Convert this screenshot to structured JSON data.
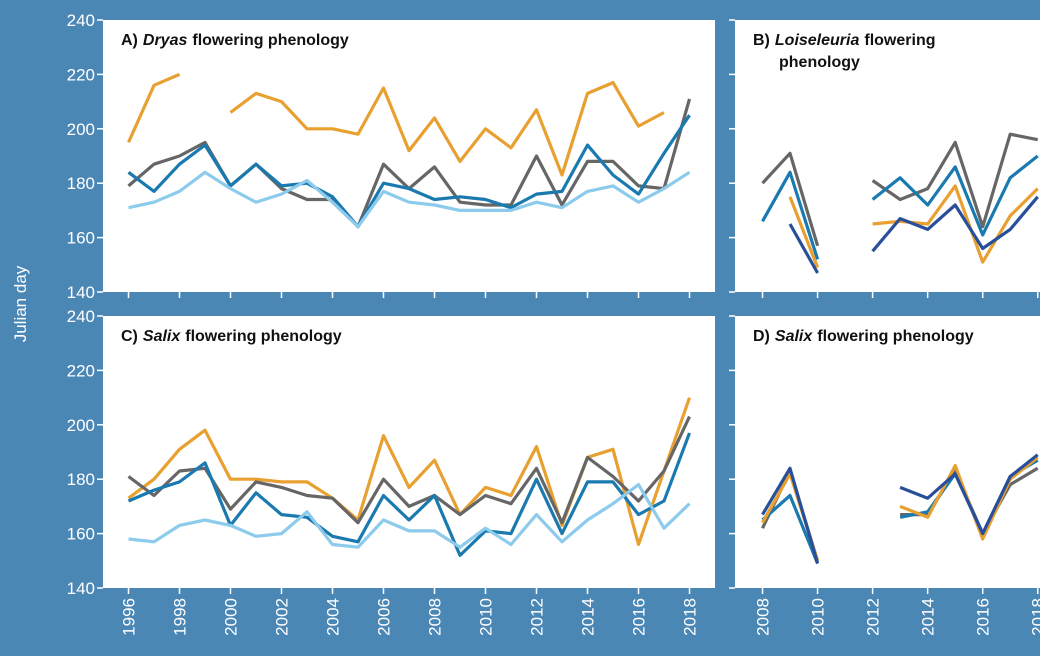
{
  "chart_data": [
    {
      "type": "line",
      "title": [
        [
          {
            "text": "A)"
          },
          {
            "text": "Dryas",
            "italic": true
          },
          {
            "text": "flowering phenology"
          }
        ]
      ],
      "ylabel": "Julian day",
      "x": [
        1996,
        1997,
        1998,
        1999,
        2000,
        2001,
        2002,
        2003,
        2004,
        2005,
        2006,
        2007,
        2008,
        2009,
        2010,
        2011,
        2012,
        2013,
        2014,
        2015,
        2016,
        2017,
        2018
      ],
      "xlim": [
        1995,
        2019
      ],
      "xticks": [
        1996,
        1998,
        2000,
        2002,
        2004,
        2006,
        2008,
        2010,
        2012,
        2014,
        2016,
        2018
      ],
      "xtick_labels": false,
      "ylim": [
        140,
        240
      ],
      "yticks": [
        140,
        160,
        180,
        200,
        220,
        240
      ],
      "ytick_labels": true,
      "series": [
        {
          "color": "#e8a030",
          "values": [
            195,
            216,
            220,
            null,
            206,
            213,
            210,
            200,
            200,
            198,
            215,
            192,
            204,
            188,
            200,
            193,
            207,
            183,
            213,
            217,
            201,
            206,
            null
          ]
        },
        {
          "color": "#666666",
          "values": [
            179,
            187,
            190,
            195,
            179,
            187,
            178,
            174,
            174,
            164,
            187,
            178,
            186,
            173,
            172,
            172,
            190,
            172,
            188,
            188,
            179,
            178,
            211
          ]
        },
        {
          "color": "#1a7ab0",
          "values": [
            184,
            177,
            187,
            194,
            179,
            187,
            179,
            180,
            175,
            164,
            180,
            178,
            174,
            175,
            174,
            171,
            176,
            177,
            194,
            183,
            176,
            191,
            205
          ]
        },
        {
          "color": "#8ccbec",
          "values": [
            171,
            173,
            177,
            184,
            178,
            173,
            176,
            181,
            173,
            164,
            177,
            173,
            172,
            170,
            170,
            170,
            173,
            171,
            177,
            179,
            173,
            178,
            184
          ]
        }
      ]
    },
    {
      "type": "line",
      "title": [
        [
          {
            "text": "B)"
          },
          {
            "text": "Loiseleuria",
            "italic": true
          },
          {
            "text": "flowering"
          }
        ],
        [
          {
            "text": "phenology"
          }
        ]
      ],
      "x": [
        2008,
        2009,
        2010,
        2011,
        2012,
        2013,
        2014,
        2015,
        2016,
        2017,
        2018
      ],
      "xlim": [
        2007,
        2018.3
      ],
      "xticks": [
        2008,
        2010,
        2012,
        2014,
        2016,
        2018
      ],
      "xtick_labels": false,
      "ylim": [
        140,
        240
      ],
      "yticks": [
        140,
        160,
        180,
        200,
        220,
        240
      ],
      "ytick_labels": false,
      "series": [
        {
          "color": "#666666",
          "values": [
            180,
            191,
            157,
            null,
            181,
            174,
            178,
            195,
            164,
            198,
            196
          ]
        },
        {
          "color": "#1a7ab0",
          "values": [
            166,
            184,
            152,
            null,
            174,
            182,
            172,
            186,
            161,
            182,
            190
          ]
        },
        {
          "color": "#e8a030",
          "values": [
            null,
            175,
            149,
            null,
            165,
            166,
            165,
            179,
            151,
            168,
            178
          ]
        },
        {
          "color": "#2a4f9a",
          "values": [
            null,
            165,
            147,
            null,
            155,
            167,
            163,
            172,
            156,
            163,
            175
          ]
        }
      ]
    },
    {
      "type": "line",
      "title": [
        [
          {
            "text": "C)"
          },
          {
            "text": "Salix",
            "italic": true
          },
          {
            "text": "flowering phenology"
          }
        ]
      ],
      "x": [
        1996,
        1997,
        1998,
        1999,
        2000,
        2001,
        2002,
        2003,
        2004,
        2005,
        2006,
        2007,
        2008,
        2009,
        2010,
        2011,
        2012,
        2013,
        2014,
        2015,
        2016,
        2017,
        2018
      ],
      "xlim": [
        1995,
        2019
      ],
      "xticks": [
        1996,
        1998,
        2000,
        2002,
        2004,
        2006,
        2008,
        2010,
        2012,
        2014,
        2016,
        2018
      ],
      "xtick_labels": true,
      "ylim": [
        140,
        240
      ],
      "yticks": [
        140,
        160,
        180,
        200,
        220,
        240
      ],
      "ytick_labels": true,
      "series": [
        {
          "color": "#e8a030",
          "values": [
            173,
            180,
            191,
            198,
            180,
            180,
            179,
            179,
            173,
            165,
            196,
            177,
            187,
            167,
            177,
            174,
            192,
            163,
            188,
            191,
            156,
            183,
            210
          ]
        },
        {
          "color": "#666666",
          "values": [
            181,
            174,
            183,
            184,
            169,
            179,
            177,
            174,
            173,
            164,
            180,
            170,
            174,
            167,
            174,
            171,
            184,
            164,
            188,
            181,
            172,
            183,
            203
          ]
        },
        {
          "color": "#1a7ab0",
          "values": [
            172,
            176,
            179,
            186,
            163,
            175,
            167,
            166,
            159,
            157,
            174,
            165,
            174,
            152,
            161,
            160,
            180,
            160,
            179,
            179,
            167,
            172,
            197
          ]
        },
        {
          "color": "#8ccbec",
          "values": [
            158,
            157,
            163,
            165,
            163,
            159,
            160,
            168,
            156,
            155,
            165,
            161,
            161,
            155,
            162,
            156,
            167,
            157,
            165,
            171,
            178,
            162,
            171
          ]
        }
      ]
    },
    {
      "type": "line",
      "title": [
        [
          {
            "text": "D)"
          },
          {
            "text": "Salix",
            "italic": true
          },
          {
            "text": "flowering phenology"
          }
        ]
      ],
      "x": [
        2008,
        2009,
        2010,
        2011,
        2012,
        2013,
        2014,
        2015,
        2016,
        2017,
        2018
      ],
      "xlim": [
        2007,
        2018.3
      ],
      "xticks": [
        2008,
        2010,
        2012,
        2014,
        2016,
        2018
      ],
      "xtick_labels": true,
      "ylim": [
        140,
        240
      ],
      "yticks": [
        140,
        160,
        180,
        200,
        220,
        240
      ],
      "ytick_labels": false,
      "series": [
        {
          "color": "#666666",
          "values": [
            162,
            183,
            150,
            null,
            null,
            167,
            167,
            183,
            160,
            178,
            184
          ]
        },
        {
          "color": "#1a7ab0",
          "values": [
            165,
            174,
            149,
            null,
            null,
            166,
            168,
            182,
            160,
            181,
            187
          ]
        },
        {
          "color": "#e8a030",
          "values": [
            164,
            182,
            150,
            null,
            null,
            170,
            166,
            185,
            158,
            180,
            188
          ]
        },
        {
          "color": "#2a4f9a",
          "values": [
            167,
            184,
            149,
            null,
            null,
            177,
            173,
            182,
            160,
            181,
            189
          ]
        }
      ]
    }
  ]
}
